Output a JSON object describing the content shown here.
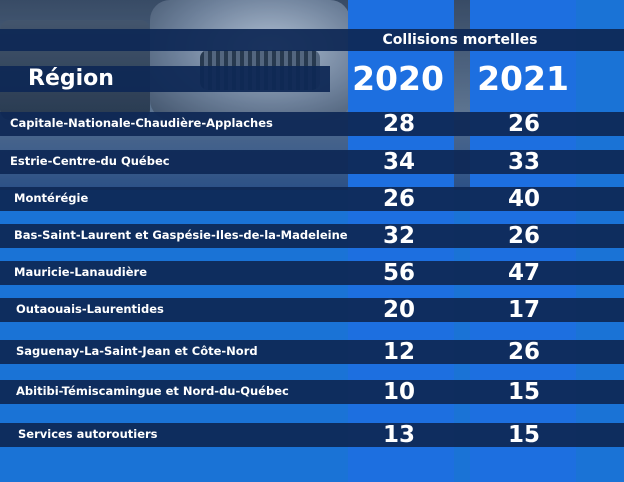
{
  "header": {
    "title": "Collisions mortelles",
    "region_label": "Région",
    "year_1": "2020",
    "year_2": "2021"
  },
  "rows": [
    {
      "region": "Capitale-Nationale-Chaudière-Applaches",
      "v2020": "28",
      "v2021": "26"
    },
    {
      "region": "Estrie-Centre-du Québec",
      "v2020": "34",
      "v2021": "33"
    },
    {
      "region": "Montérégie",
      "v2020": "26",
      "v2021": "40"
    },
    {
      "region": "Bas-Saint-Laurent et Gaspésie-Iles-de-la-Madeleine",
      "v2020": "32",
      "v2021": "26"
    },
    {
      "region": "Mauricie-Lanaudière",
      "v2020": "56",
      "v2021": "47"
    },
    {
      "region": "Outaouais-Laurentides",
      "v2020": "20",
      "v2021": "17"
    },
    {
      "region": "Saguenay-La-Saint-Jean et Côte-Nord",
      "v2020": "12",
      "v2021": "26"
    },
    {
      "region": "Abitibi-Témiscamingue et Nord-du-Québec",
      "v2020": "10",
      "v2021": "15"
    },
    {
      "region": "Services autoroutiers",
      "v2020": "13",
      "v2021": "15"
    }
  ],
  "colors": {
    "background": "#1a73d6",
    "band": "#0e2855",
    "text": "#ffffff"
  }
}
